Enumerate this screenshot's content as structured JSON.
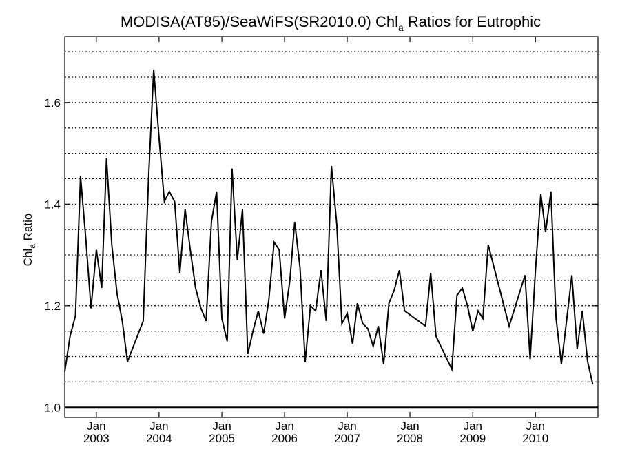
{
  "chart_data": {
    "type": "line",
    "title": {
      "prefix": "MODISA(AT85)/SeaWiFS(SR2010.0)  Chl",
      "subscript": "a",
      "suffix": " Ratios for Eutrophic"
    },
    "ylabel": {
      "main": "Chl",
      "subscript": "a",
      "rest": " Ratio"
    },
    "xlabel": "",
    "ylim": [
      0.98,
      1.73
    ],
    "xlim": [
      "2002-07-01",
      "2010-12-31"
    ],
    "y_ticks": [
      1.0,
      1.2,
      1.4,
      1.6
    ],
    "y_tick_labels": [
      "1.0",
      "1.2",
      "1.4",
      "1.6"
    ],
    "gridlines_y": [
      1.05,
      1.1,
      1.15,
      1.2,
      1.25,
      1.3,
      1.35,
      1.4,
      1.45,
      1.5,
      1.55,
      1.6,
      1.65,
      1.7
    ],
    "grid_style": "dotted horizontal",
    "reference_line": 1.0,
    "x_ticks": [
      {
        "date": "2003-01-01",
        "month": "Jan",
        "year": "2003"
      },
      {
        "date": "2004-01-01",
        "month": "Jan",
        "year": "2004"
      },
      {
        "date": "2005-01-01",
        "month": "Jan",
        "year": "2005"
      },
      {
        "date": "2006-01-01",
        "month": "Jan",
        "year": "2006"
      },
      {
        "date": "2007-01-01",
        "month": "Jan",
        "year": "2007"
      },
      {
        "date": "2008-01-01",
        "month": "Jan",
        "year": "2008"
      },
      {
        "date": "2009-01-01",
        "month": "Jan",
        "year": "2009"
      },
      {
        "date": "2010-01-01",
        "month": "Jan",
        "year": "2010"
      }
    ],
    "series": [
      {
        "color": "#000000",
        "points": [
          [
            "2002-07-01",
            1.07
          ],
          [
            "2002-08-01",
            1.14
          ],
          [
            "2002-09-01",
            1.18
          ],
          [
            "2002-10-01",
            1.455
          ],
          [
            "2002-11-01",
            1.33
          ],
          [
            "2002-12-01",
            1.195
          ],
          [
            "2003-01-01",
            1.31
          ],
          [
            "2003-02-01",
            1.235
          ],
          [
            "2003-03-01",
            1.49
          ],
          [
            "2003-04-01",
            1.32
          ],
          [
            "2003-05-01",
            1.225
          ],
          [
            "2003-06-01",
            1.17
          ],
          [
            "2003-07-01",
            1.09
          ],
          [
            "2003-10-01",
            1.17
          ],
          [
            "2003-11-01",
            1.45
          ],
          [
            "2003-12-01",
            1.665
          ],
          [
            "2004-01-01",
            1.53
          ],
          [
            "2004-02-01",
            1.405
          ],
          [
            "2004-03-01",
            1.425
          ],
          [
            "2004-04-01",
            1.405
          ],
          [
            "2004-05-01",
            1.265
          ],
          [
            "2004-06-01",
            1.39
          ],
          [
            "2004-07-01",
            1.31
          ],
          [
            "2004-08-01",
            1.235
          ],
          [
            "2004-09-01",
            1.195
          ],
          [
            "2004-10-01",
            1.17
          ],
          [
            "2004-11-01",
            1.365
          ],
          [
            "2004-12-01",
            1.425
          ],
          [
            "2005-01-01",
            1.175
          ],
          [
            "2005-02-01",
            1.13
          ],
          [
            "2005-03-01",
            1.47
          ],
          [
            "2005-04-01",
            1.29
          ],
          [
            "2005-05-01",
            1.39
          ],
          [
            "2005-06-01",
            1.105
          ],
          [
            "2005-07-01",
            1.15
          ],
          [
            "2005-08-01",
            1.19
          ],
          [
            "2005-09-01",
            1.145
          ],
          [
            "2005-10-01",
            1.21
          ],
          [
            "2005-11-01",
            1.325
          ],
          [
            "2005-12-01",
            1.31
          ],
          [
            "2006-01-01",
            1.175
          ],
          [
            "2006-02-01",
            1.25
          ],
          [
            "2006-03-01",
            1.365
          ],
          [
            "2006-04-01",
            1.275
          ],
          [
            "2006-05-01",
            1.09
          ],
          [
            "2006-06-01",
            1.2
          ],
          [
            "2006-07-01",
            1.19
          ],
          [
            "2006-08-01",
            1.27
          ],
          [
            "2006-09-01",
            1.17
          ],
          [
            "2006-10-01",
            1.475
          ],
          [
            "2006-11-01",
            1.36
          ],
          [
            "2006-12-01",
            1.165
          ],
          [
            "2007-01-01",
            1.185
          ],
          [
            "2007-02-01",
            1.125
          ],
          [
            "2007-03-01",
            1.205
          ],
          [
            "2007-04-01",
            1.165
          ],
          [
            "2007-05-01",
            1.155
          ],
          [
            "2007-06-01",
            1.12
          ],
          [
            "2007-07-01",
            1.16
          ],
          [
            "2007-08-01",
            1.085
          ],
          [
            "2007-09-01",
            1.205
          ],
          [
            "2007-10-01",
            1.23
          ],
          [
            "2007-11-01",
            1.27
          ],
          [
            "2007-12-01",
            1.19
          ],
          [
            "2008-04-01",
            1.16
          ],
          [
            "2008-05-01",
            1.265
          ],
          [
            "2008-06-01",
            1.14
          ],
          [
            "2008-09-01",
            1.075
          ],
          [
            "2008-10-01",
            1.22
          ],
          [
            "2008-11-01",
            1.235
          ],
          [
            "2008-12-01",
            1.2
          ],
          [
            "2009-01-01",
            1.15
          ],
          [
            "2009-02-01",
            1.19
          ],
          [
            "2009-03-01",
            1.175
          ],
          [
            "2009-04-01",
            1.32
          ],
          [
            "2009-08-01",
            1.16
          ],
          [
            "2009-11-01",
            1.26
          ],
          [
            "2009-12-01",
            1.095
          ],
          [
            "2010-01-01",
            1.27
          ],
          [
            "2010-02-01",
            1.42
          ],
          [
            "2010-03-01",
            1.345
          ],
          [
            "2010-04-01",
            1.425
          ],
          [
            "2010-05-01",
            1.175
          ],
          [
            "2010-06-01",
            1.085
          ],
          [
            "2010-07-01",
            1.17
          ],
          [
            "2010-08-01",
            1.26
          ],
          [
            "2010-09-01",
            1.115
          ],
          [
            "2010-10-01",
            1.19
          ],
          [
            "2010-11-01",
            1.09
          ],
          [
            "2010-12-01",
            1.045
          ]
        ]
      }
    ]
  }
}
